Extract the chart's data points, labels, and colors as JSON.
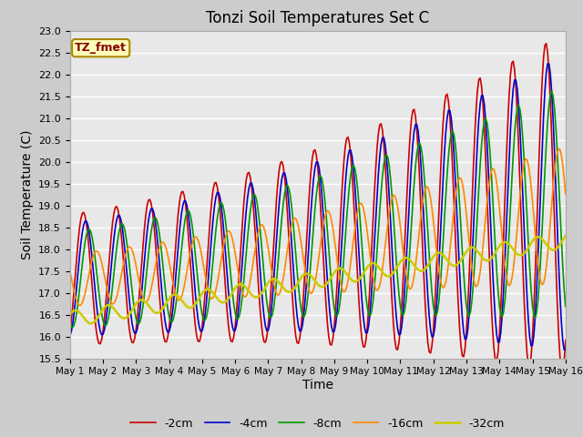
{
  "title": "Tonzi Soil Temperatures Set C",
  "xlabel": "Time",
  "ylabel": "Soil Temperature (C)",
  "ylim": [
    15.5,
    23.0
  ],
  "xlim": [
    0,
    15
  ],
  "xtick_labels": [
    "May 1",
    "May 2",
    "May 3",
    "May 4",
    "May 5",
    "May 6",
    "May 7",
    "May 8",
    "May 9",
    "May 10",
    "May 11",
    "May 12",
    "May 13",
    "May 14",
    "May 15",
    "May 16"
  ],
  "colors": {
    "-2cm": "#cc0000",
    "-4cm": "#0000cc",
    "-8cm": "#009900",
    "-16cm": "#ff8800",
    "-32cm": "#cccc00"
  },
  "legend_labels": [
    "-2cm",
    "-4cm",
    "-8cm",
    "-16cm",
    "-32cm"
  ],
  "annotation_text": "TZ_fmet",
  "annotation_color": "#880000",
  "annotation_bg": "#ffffbb",
  "title_fontsize": 12,
  "axis_label_fontsize": 10
}
